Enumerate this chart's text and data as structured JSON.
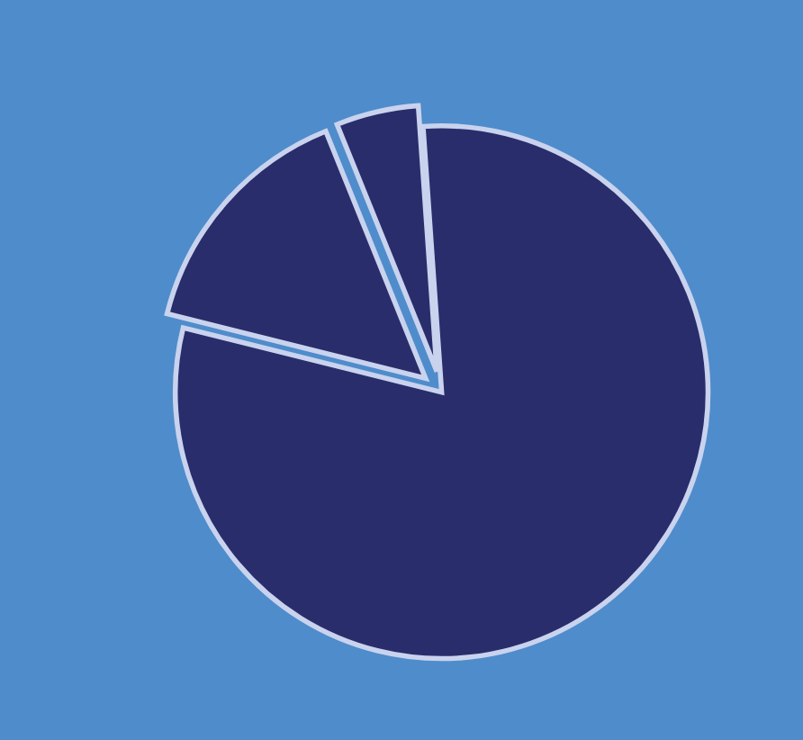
{
  "chart_data": {
    "type": "pie",
    "categories": [
      null,
      null,
      null
    ],
    "values": [
      80,
      15,
      5
    ],
    "colors": [
      "#2a2d6c",
      "#2a2d6c",
      "#2a2d6c"
    ]
  }
}
